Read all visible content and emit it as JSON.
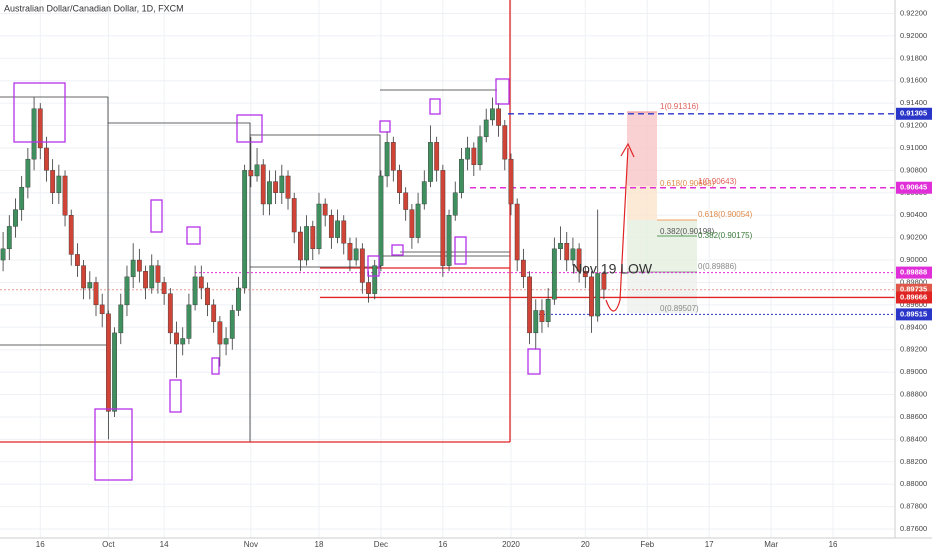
{
  "chart_data": {
    "type": "candlestick",
    "title": "Australian Dollar/Canadian Dollar, 1D, FXCM",
    "open": [
      0.9,
      0.901,
      0.903,
      0.9045,
      0.9065,
      0.909,
      0.9135,
      0.91,
      0.908,
      0.906,
      0.9075,
      0.904,
      0.9005,
      0.8995,
      0.8975,
      0.898,
      0.896,
      0.8952,
      0.8865,
      0.8935,
      0.896,
      0.8985,
      0.9,
      0.899,
      0.8975,
      0.8995,
      0.898,
      0.897,
      0.8935,
      0.8925,
      0.893,
      0.896,
      0.8985,
      0.8975,
      0.896,
      0.8945,
      0.8925,
      0.893,
      0.8955,
      0.8975,
      0.908,
      0.9075,
      0.9085,
      0.905,
      0.907,
      0.906,
      0.9075,
      0.9055,
      0.9025,
      0.9,
      0.903,
      0.901,
      0.905,
      0.904,
      0.902,
      0.9035,
      0.9015,
      0.9,
      0.901,
      0.898,
      0.897,
      0.8995,
      0.9075,
      0.9105,
      0.908,
      0.906,
      0.9045,
      0.902,
      0.905,
      0.907,
      0.9105,
      0.908,
      0.8995,
      0.904,
      0.906,
      0.909,
      0.91,
      0.9085,
      0.911,
      0.9125,
      0.9135,
      0.912,
      0.909,
      0.905,
      0.9,
      0.8985,
      0.8935,
      0.8955,
      0.8945,
      0.8965,
      0.901,
      0.9015,
      0.9,
      0.901,
      0.899,
      0.8985,
      0.895,
      0.8988
    ],
    "high": [
      0.9025,
      0.904,
      0.9055,
      0.9075,
      0.91,
      0.9145,
      0.914,
      0.911,
      0.909,
      0.9085,
      0.908,
      0.9045,
      0.9015,
      0.9,
      0.899,
      0.8985,
      0.897,
      0.8955,
      0.894,
      0.897,
      0.8995,
      0.9015,
      0.901,
      0.8995,
      0.9005,
      0.9,
      0.8985,
      0.8975,
      0.8945,
      0.894,
      0.897,
      0.8995,
      0.8995,
      0.898,
      0.8965,
      0.895,
      0.894,
      0.896,
      0.8985,
      0.9085,
      0.911,
      0.91,
      0.909,
      0.908,
      0.908,
      0.9085,
      0.908,
      0.906,
      0.903,
      0.904,
      0.9035,
      0.906,
      0.9055,
      0.9045,
      0.9045,
      0.904,
      0.902,
      0.902,
      0.9015,
      0.899,
      0.9,
      0.908,
      0.9115,
      0.911,
      0.9085,
      0.9065,
      0.905,
      0.906,
      0.908,
      0.912,
      0.911,
      0.9085,
      0.9045,
      0.907,
      0.91,
      0.911,
      0.9105,
      0.912,
      0.9135,
      0.9145,
      0.914,
      0.9125,
      0.9095,
      0.9055,
      0.901,
      0.899,
      0.8965,
      0.8965,
      0.8975,
      0.902,
      0.903,
      0.9025,
      0.902,
      0.9015,
      0.8995,
      0.899,
      0.9045,
      0.899
    ],
    "low": [
      0.899,
      0.9,
      0.902,
      0.9035,
      0.9055,
      0.908,
      0.909,
      0.907,
      0.905,
      0.905,
      0.903,
      0.8995,
      0.8985,
      0.8965,
      0.8965,
      0.895,
      0.894,
      0.884,
      0.886,
      0.8925,
      0.895,
      0.8975,
      0.898,
      0.8965,
      0.897,
      0.897,
      0.896,
      0.8925,
      0.8895,
      0.8915,
      0.8925,
      0.8955,
      0.8965,
      0.895,
      0.8935,
      0.8905,
      0.8915,
      0.892,
      0.895,
      0.897,
      0.9065,
      0.907,
      0.904,
      0.904,
      0.905,
      0.905,
      0.9045,
      0.9015,
      0.899,
      0.8995,
      0.9,
      0.9005,
      0.903,
      0.901,
      0.9015,
      0.9005,
      0.899,
      0.8995,
      0.897,
      0.8962,
      0.8965,
      0.899,
      0.9065,
      0.907,
      0.905,
      0.9035,
      0.901,
      0.9015,
      0.9045,
      0.9065,
      0.907,
      0.8985,
      0.899,
      0.9035,
      0.9055,
      0.908,
      0.9075,
      0.908,
      0.9105,
      0.912,
      0.911,
      0.908,
      0.904,
      0.899,
      0.8975,
      0.8925,
      0.892,
      0.8935,
      0.894,
      0.896,
      0.9,
      0.899,
      0.8995,
      0.898,
      0.8975,
      0.8935,
      0.8945,
      0.8965
    ],
    "close": [
      0.901,
      0.903,
      0.9045,
      0.9065,
      0.909,
      0.9135,
      0.91,
      0.908,
      0.906,
      0.9075,
      0.904,
      0.9005,
      0.8995,
      0.8975,
      0.898,
      0.896,
      0.8952,
      0.8865,
      0.8935,
      0.896,
      0.8985,
      0.9,
      0.899,
      0.8975,
      0.8995,
      0.898,
      0.897,
      0.8935,
      0.8925,
      0.893,
      0.896,
      0.8985,
      0.8975,
      0.896,
      0.8945,
      0.8925,
      0.893,
      0.8955,
      0.8975,
      0.908,
      0.9075,
      0.9085,
      0.905,
      0.907,
      0.906,
      0.9075,
      0.9055,
      0.9025,
      0.9,
      0.903,
      0.901,
      0.905,
      0.904,
      0.902,
      0.9035,
      0.9015,
      0.9,
      0.901,
      0.898,
      0.897,
      0.8995,
      0.9075,
      0.9105,
      0.908,
      0.906,
      0.9045,
      0.902,
      0.905,
      0.907,
      0.9105,
      0.908,
      0.8995,
      0.904,
      0.906,
      0.909,
      0.91,
      0.9085,
      0.911,
      0.9125,
      0.9135,
      0.912,
      0.909,
      0.905,
      0.9,
      0.8985,
      0.8935,
      0.8955,
      0.8945,
      0.8965,
      0.901,
      0.9015,
      0.9,
      0.901,
      0.899,
      0.8985,
      0.895,
      0.8988,
      0.8974
    ],
    "up_color": "#3f8f5f",
    "down_color": "#cf4436",
    "ylim": [
      0.8752,
      0.9232
    ],
    "yticks": [
      {
        "value": 0.876,
        "label": "0.87600"
      },
      {
        "value": 0.878,
        "label": "0.87800"
      },
      {
        "value": 0.88,
        "label": "0.88000"
      },
      {
        "value": 0.882,
        "label": "0.88200"
      },
      {
        "value": 0.884,
        "label": "0.88400"
      },
      {
        "value": 0.886,
        "label": "0.88600"
      },
      {
        "value": 0.888,
        "label": "0.88800"
      },
      {
        "value": 0.89,
        "label": "0.89000"
      },
      {
        "value": 0.892,
        "label": "0.89200"
      },
      {
        "value": 0.894,
        "label": "0.89400"
      },
      {
        "value": 0.896,
        "label": "0.89600"
      },
      {
        "value": 0.898,
        "label": "0.89800"
      },
      {
        "value": 0.9,
        "label": "0.90000"
      },
      {
        "value": 0.902,
        "label": "0.90200"
      },
      {
        "value": 0.904,
        "label": "0.90400"
      },
      {
        "value": 0.906,
        "label": "0.90600"
      },
      {
        "value": 0.908,
        "label": "0.90800"
      },
      {
        "value": 0.91,
        "label": "0.91000"
      },
      {
        "value": 0.912,
        "label": "0.91200"
      },
      {
        "value": 0.914,
        "label": "0.91400"
      },
      {
        "value": 0.916,
        "label": "0.91600"
      },
      {
        "value": 0.918,
        "label": "0.91800"
      },
      {
        "value": 0.92,
        "label": "0.92000"
      },
      {
        "value": 0.922,
        "label": "0.92200"
      }
    ],
    "xlim": [
      -0.5,
      144
    ],
    "xticks": [
      {
        "value": 6,
        "label": "16"
      },
      {
        "value": 17,
        "label": "Oct"
      },
      {
        "value": 26,
        "label": "14"
      },
      {
        "value": 40,
        "label": "Nov"
      },
      {
        "value": 51,
        "label": "18"
      },
      {
        "value": 61,
        "label": "Dec"
      },
      {
        "value": 71,
        "label": "16"
      },
      {
        "value": 82,
        "label": "2020"
      },
      {
        "value": 94,
        "label": "20"
      },
      {
        "value": 104,
        "label": "Feb"
      },
      {
        "value": 114,
        "label": "17"
      },
      {
        "value": 124,
        "label": "Mar"
      },
      {
        "value": 134,
        "label": "16"
      }
    ],
    "grid": true,
    "levels": [
      {
        "value": 0.91305,
        "color": "#2a36c8",
        "style": "dashed"
      },
      {
        "value": 0.90645,
        "color": "#e02fd8",
        "style": "dashed"
      },
      {
        "value": 0.89888,
        "color": "#e02fd8",
        "style": "dotted"
      },
      {
        "value": 0.89735,
        "color": "#e0584a",
        "style": "dotted"
      },
      {
        "value": 0.89666,
        "color": "#e02424",
        "style": "solid"
      },
      {
        "value": 0.89515,
        "color": "#2a36c8",
        "style": "dotted"
      }
    ],
    "annotations": [
      "1(0.91316)",
      "0.618(0.90643)",
      "1(0.90643)",
      "0.618(0.90054)",
      "0.382(0.90198)",
      "0.382(0.90175)",
      "0(0.89886)",
      "0(0.89507)",
      "Nov 19 LOW"
    ]
  }
}
